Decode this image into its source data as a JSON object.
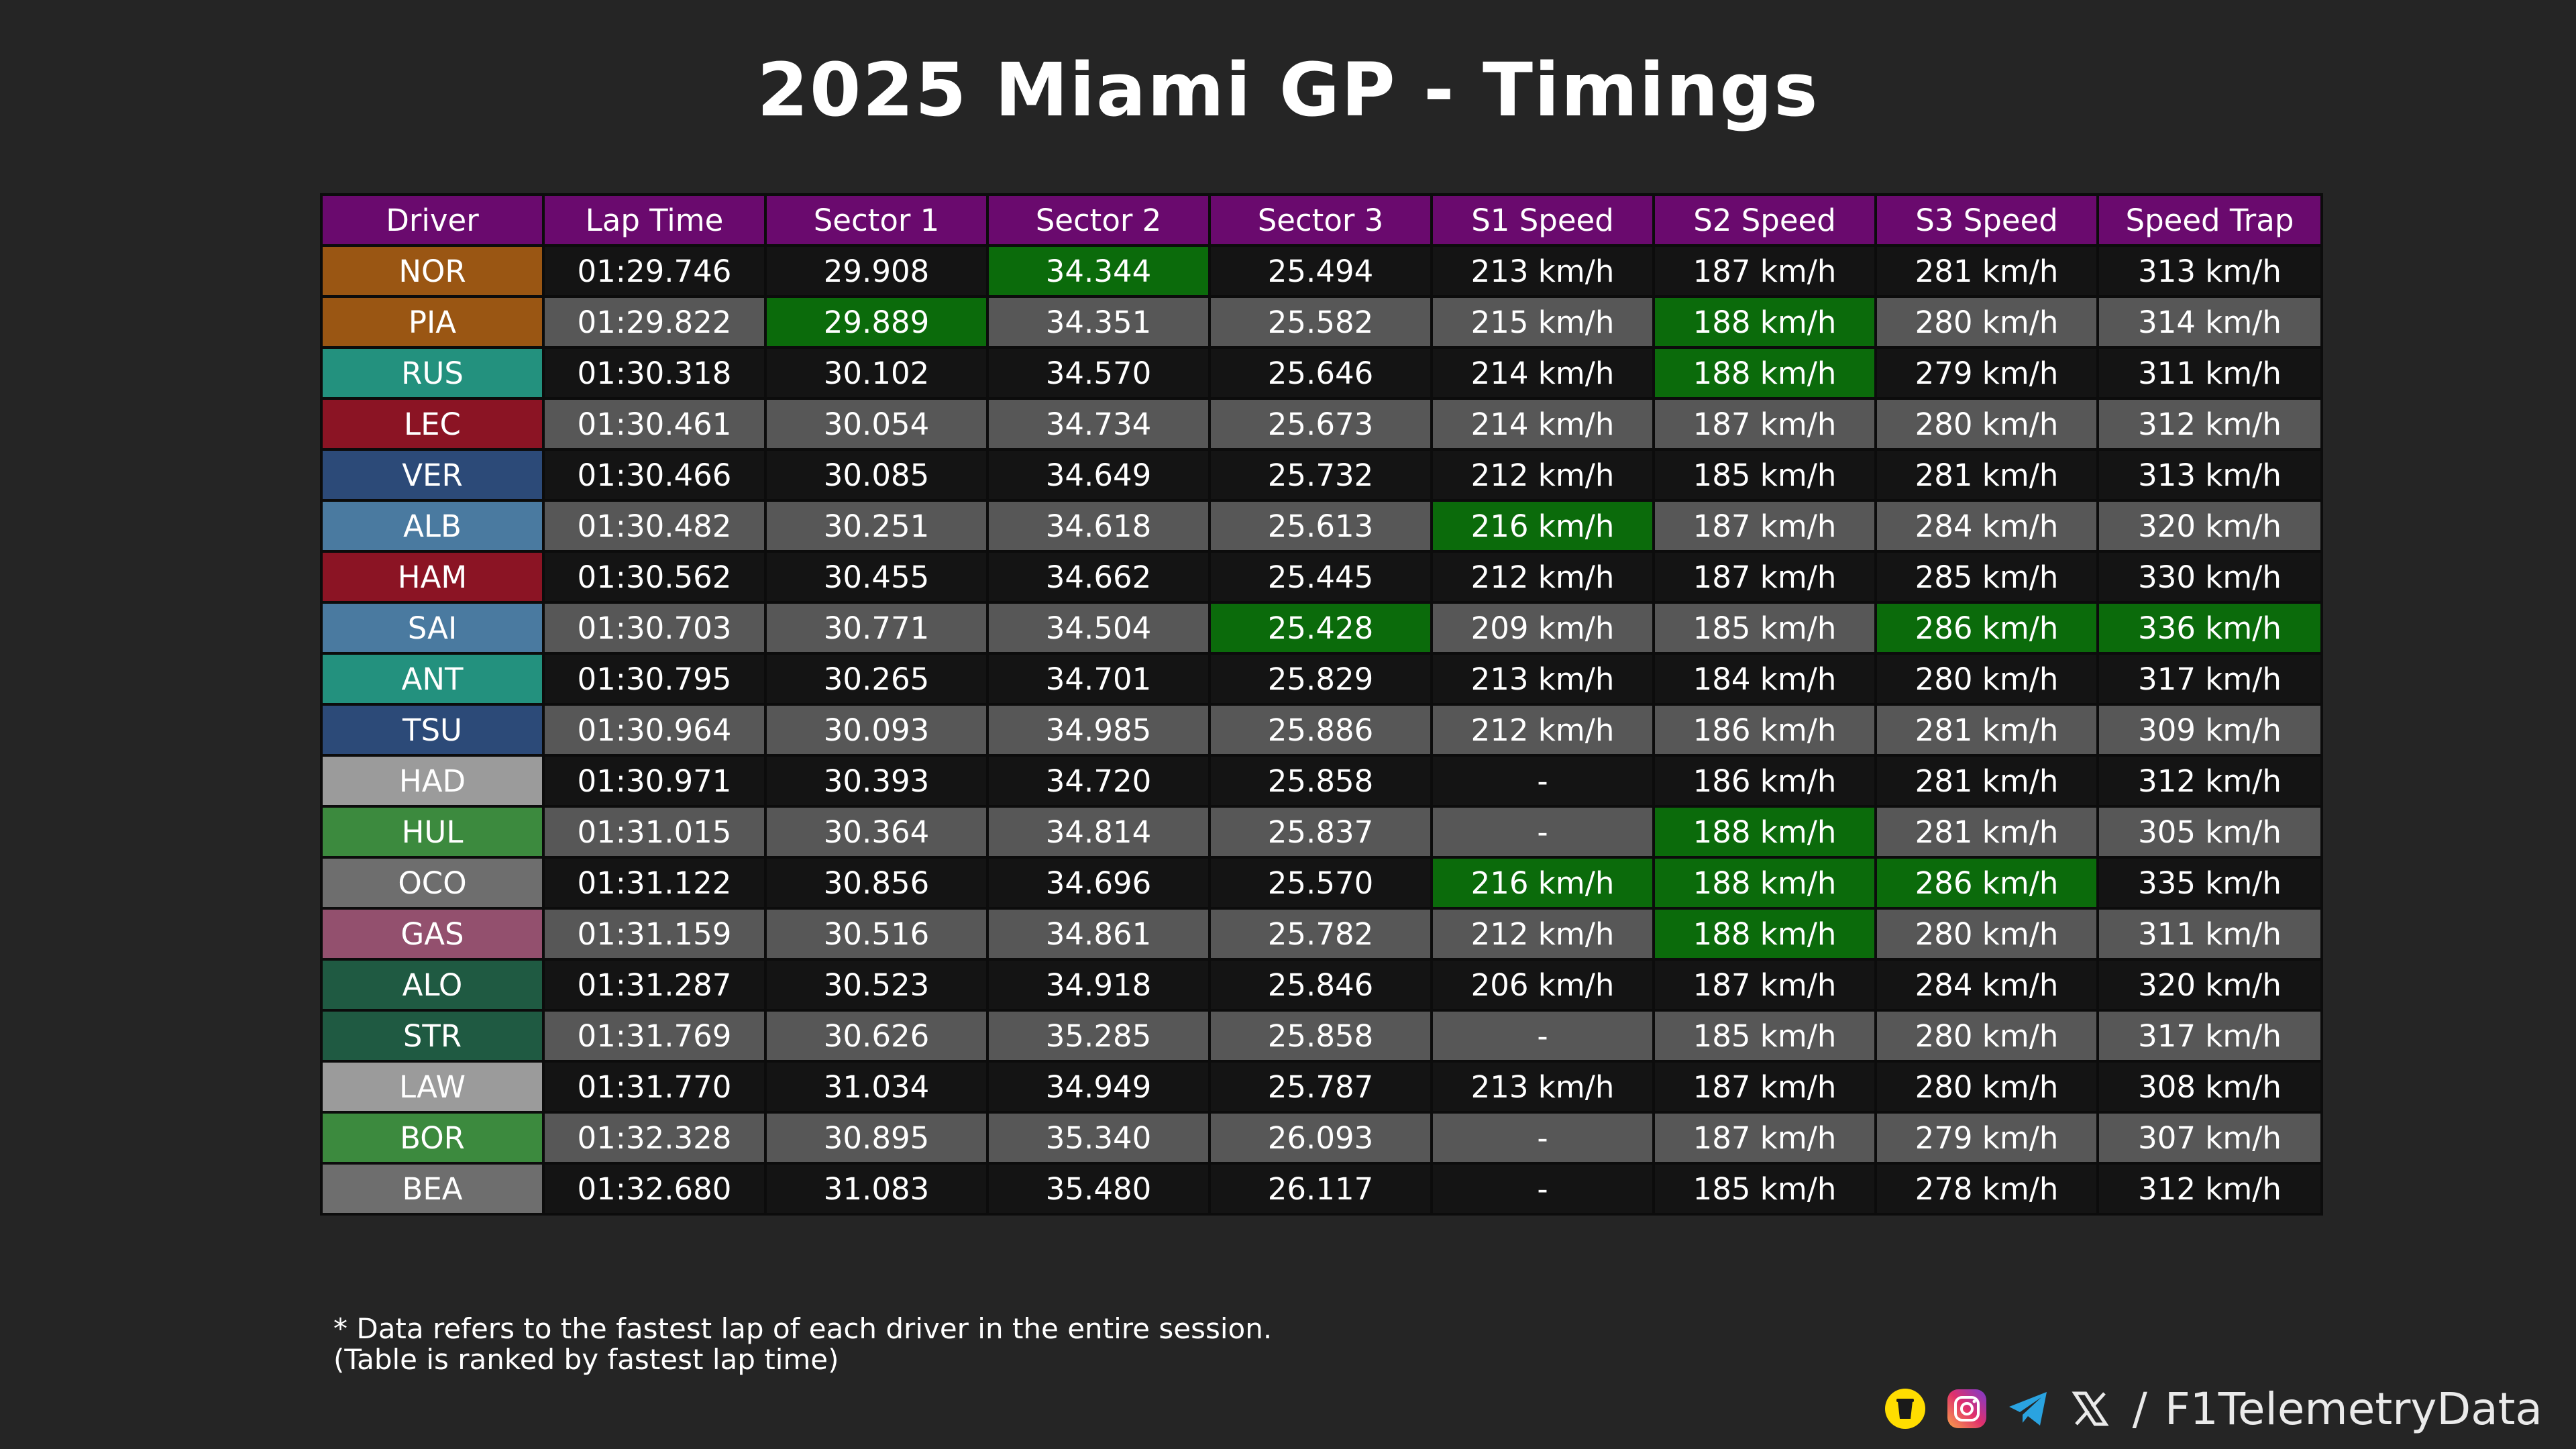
{
  "title": "2025 Miami GP - Timings",
  "watermark": "@F1TelemetryData",
  "chart_data": {
    "type": "table",
    "title": "2025 Miami GP - Timings",
    "columns": [
      "Driver",
      "Lap Time",
      "Sector 1",
      "Sector 2",
      "Sector 3",
      "S1 Speed",
      "S2 Speed",
      "S3 Speed",
      "Speed Trap"
    ],
    "rows": [
      {
        "driver": "NOR",
        "team_color": "#9a5613",
        "cells": [
          "01:29.746",
          "29.908",
          "34.344",
          "25.494",
          "213 km/h",
          "187 km/h",
          "281 km/h",
          "313 km/h"
        ],
        "best": [
          2
        ]
      },
      {
        "driver": "PIA",
        "team_color": "#9a5613",
        "cells": [
          "01:29.822",
          "29.889",
          "34.351",
          "25.582",
          "215 km/h",
          "188 km/h",
          "280 km/h",
          "314 km/h"
        ],
        "best": [
          1,
          5
        ]
      },
      {
        "driver": "RUS",
        "team_color": "#23917e",
        "cells": [
          "01:30.318",
          "30.102",
          "34.570",
          "25.646",
          "214 km/h",
          "188 km/h",
          "279 km/h",
          "311 km/h"
        ],
        "best": [
          5
        ]
      },
      {
        "driver": "LEC",
        "team_color": "#8b1424",
        "cells": [
          "01:30.461",
          "30.054",
          "34.734",
          "25.673",
          "214 km/h",
          "187 km/h",
          "280 km/h",
          "312 km/h"
        ],
        "best": []
      },
      {
        "driver": "VER",
        "team_color": "#2c4a78",
        "cells": [
          "01:30.466",
          "30.085",
          "34.649",
          "25.732",
          "212 km/h",
          "185 km/h",
          "281 km/h",
          "313 km/h"
        ],
        "best": []
      },
      {
        "driver": "ALB",
        "team_color": "#4a7aa0",
        "cells": [
          "01:30.482",
          "30.251",
          "34.618",
          "25.613",
          "216 km/h",
          "187 km/h",
          "284 km/h",
          "320 km/h"
        ],
        "best": [
          4
        ]
      },
      {
        "driver": "HAM",
        "team_color": "#8b1424",
        "cells": [
          "01:30.562",
          "30.455",
          "34.662",
          "25.445",
          "212 km/h",
          "187 km/h",
          "285 km/h",
          "330 km/h"
        ],
        "best": []
      },
      {
        "driver": "SAI",
        "team_color": "#4a7aa0",
        "cells": [
          "01:30.703",
          "30.771",
          "34.504",
          "25.428",
          "209 km/h",
          "185 km/h",
          "286 km/h",
          "336 km/h"
        ],
        "best": [
          3,
          6,
          7
        ]
      },
      {
        "driver": "ANT",
        "team_color": "#23917e",
        "cells": [
          "01:30.795",
          "30.265",
          "34.701",
          "25.829",
          "213 km/h",
          "184 km/h",
          "280 km/h",
          "317 km/h"
        ],
        "best": []
      },
      {
        "driver": "TSU",
        "team_color": "#2c4a78",
        "cells": [
          "01:30.964",
          "30.093",
          "34.985",
          "25.886",
          "212 km/h",
          "186 km/h",
          "281 km/h",
          "309 km/h"
        ],
        "best": []
      },
      {
        "driver": "HAD",
        "team_color": "#9b9b9b",
        "cells": [
          "01:30.971",
          "30.393",
          "34.720",
          "25.858",
          "-",
          "186 km/h",
          "281 km/h",
          "312 km/h"
        ],
        "best": []
      },
      {
        "driver": "HUL",
        "team_color": "#3c8a3e",
        "cells": [
          "01:31.015",
          "30.364",
          "34.814",
          "25.837",
          "-",
          "188 km/h",
          "281 km/h",
          "305 km/h"
        ],
        "best": [
          5
        ]
      },
      {
        "driver": "OCO",
        "team_color": "#6e6e6e",
        "cells": [
          "01:31.122",
          "30.856",
          "34.696",
          "25.570",
          "216 km/h",
          "188 km/h",
          "286 km/h",
          "335 km/h"
        ],
        "best": [
          4,
          5,
          6
        ]
      },
      {
        "driver": "GAS",
        "team_color": "#93506e",
        "cells": [
          "01:31.159",
          "30.516",
          "34.861",
          "25.782",
          "212 km/h",
          "188 km/h",
          "280 km/h",
          "311 km/h"
        ],
        "best": [
          5
        ]
      },
      {
        "driver": "ALO",
        "team_color": "#1f5a42",
        "cells": [
          "01:31.287",
          "30.523",
          "34.918",
          "25.846",
          "206 km/h",
          "187 km/h",
          "284 km/h",
          "320 km/h"
        ],
        "best": []
      },
      {
        "driver": "STR",
        "team_color": "#1f5a42",
        "cells": [
          "01:31.769",
          "30.626",
          "35.285",
          "25.858",
          "-",
          "185 km/h",
          "280 km/h",
          "317 km/h"
        ],
        "best": []
      },
      {
        "driver": "LAW",
        "team_color": "#9b9b9b",
        "cells": [
          "01:31.770",
          "31.034",
          "34.949",
          "25.787",
          "213 km/h",
          "187 km/h",
          "280 km/h",
          "308 km/h"
        ],
        "best": []
      },
      {
        "driver": "BOR",
        "team_color": "#3c8a3e",
        "cells": [
          "01:32.328",
          "30.895",
          "35.340",
          "26.093",
          "-",
          "187 km/h",
          "279 km/h",
          "307 km/h"
        ],
        "best": []
      },
      {
        "driver": "BEA",
        "team_color": "#6e6e6e",
        "cells": [
          "01:32.680",
          "31.083",
          "35.480",
          "26.117",
          "-",
          "185 km/h",
          "278 km/h",
          "312 km/h"
        ],
        "best": []
      }
    ]
  },
  "colors": {
    "header": "#6a0a6e",
    "row_dark": "#141414",
    "row_light": "#575757",
    "best": "#0b6b0b",
    "background": "#252525"
  },
  "footnote": {
    "line1": "* Data refers to the fastest lap of each driver in the entire session.",
    "line2": "(Table is ranked by fastest lap time)"
  },
  "branding": {
    "icons": [
      "buymeacoffee-icon",
      "instagram-icon",
      "telegram-icon",
      "x-icon"
    ],
    "separator": "/",
    "handle": "F1TelemetryData"
  }
}
